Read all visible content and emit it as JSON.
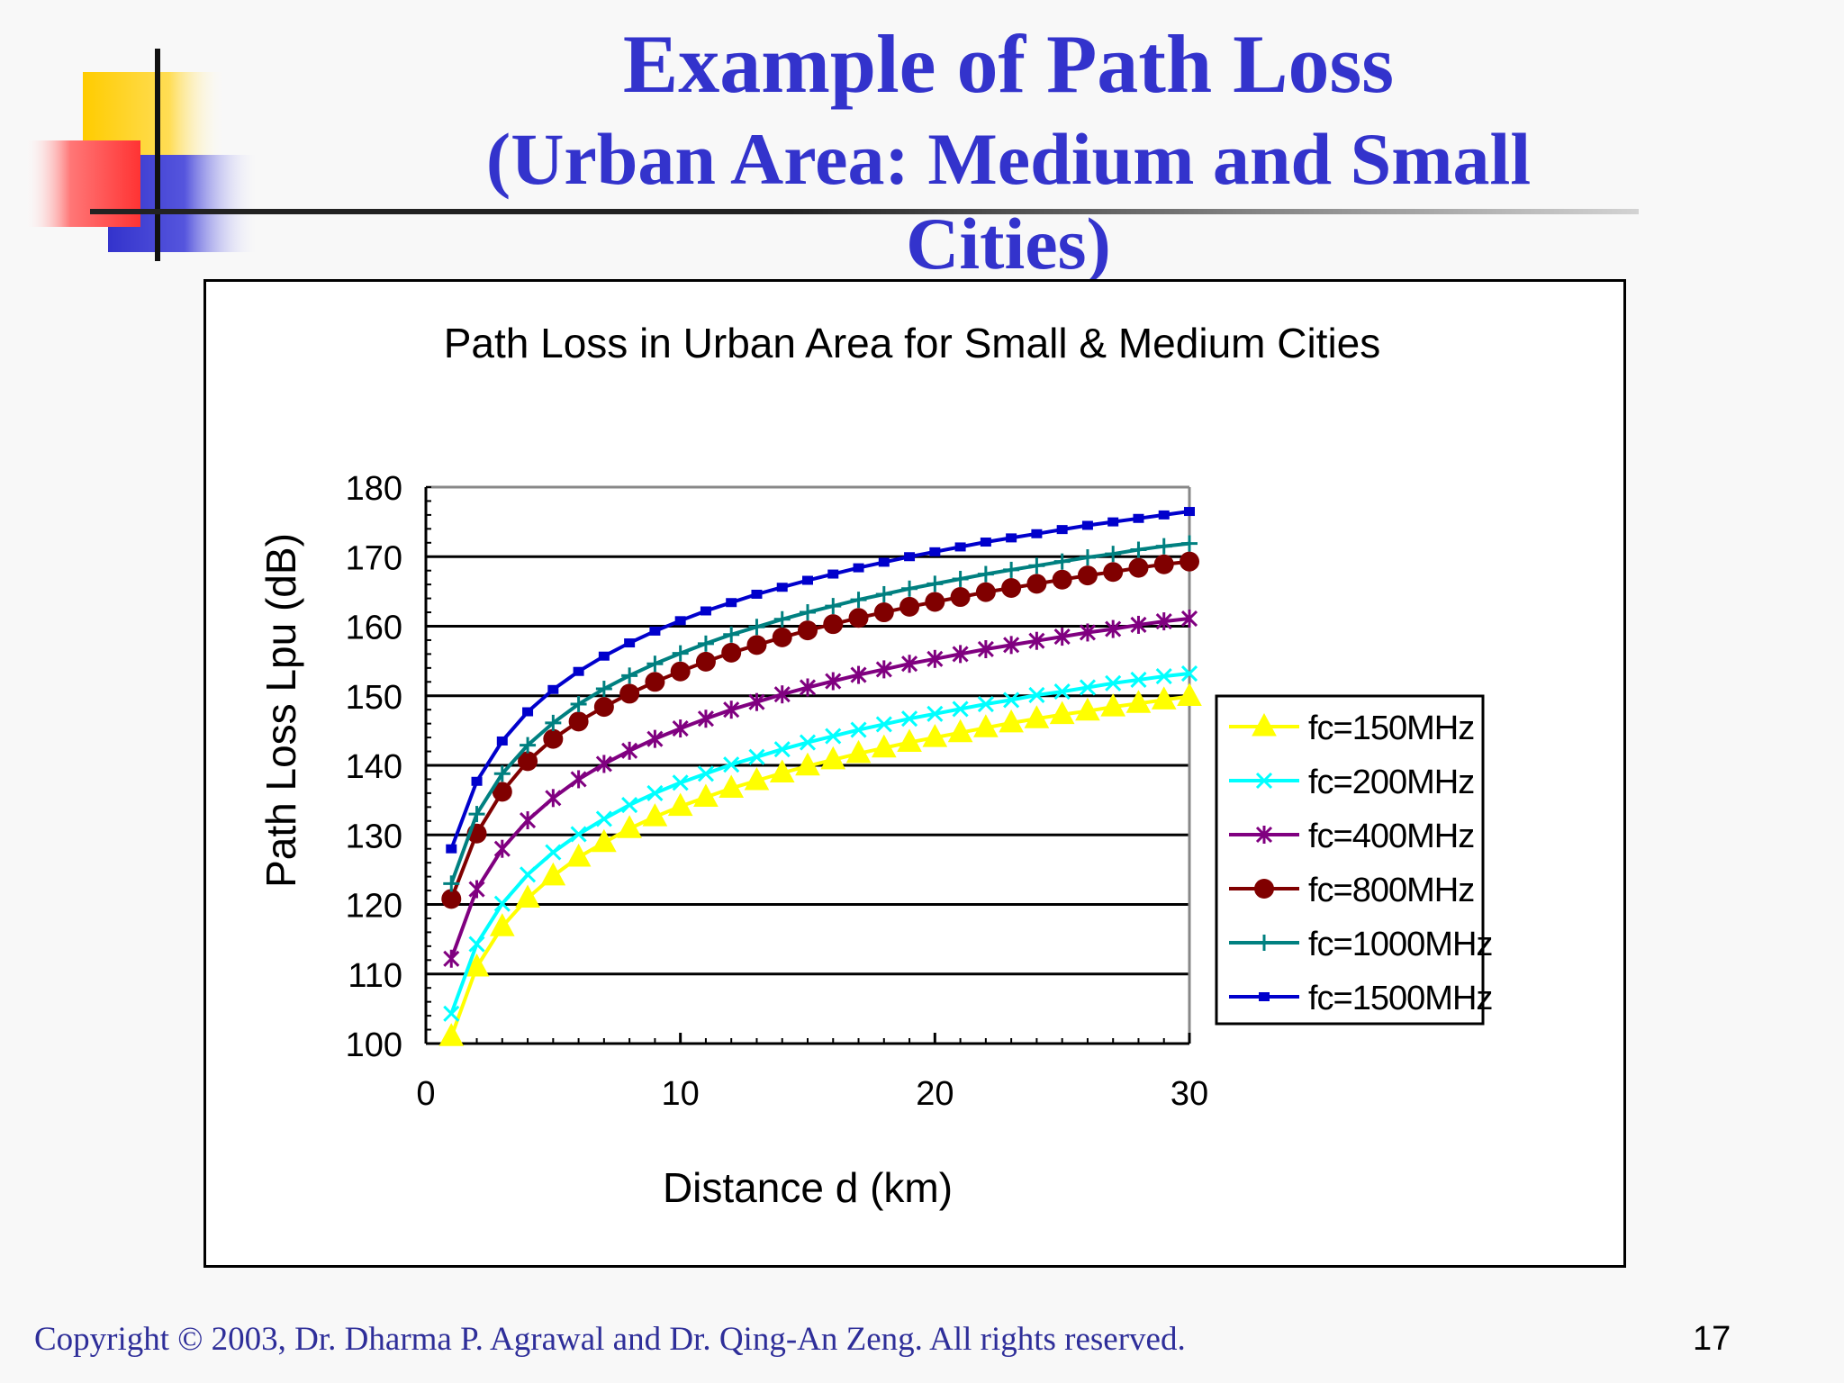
{
  "slide": {
    "title": "Example of Path Loss",
    "subtitle": "(Urban Area: Medium and Small Cities)",
    "copyright": "Copyright © 2003, Dr. Dharma P. Agrawal and Dr. Qing-An Zeng. All rights reserved.",
    "page_number": "17"
  },
  "chart_data": {
    "type": "line",
    "title": "Path Loss in Urban Area for Small & Medium Cities",
    "xlabel": "Distance d (km)",
    "ylabel": "Path Loss Lpu (dB)",
    "xlim": [
      0,
      30
    ],
    "ylim": [
      100,
      180
    ],
    "xticks": [
      0,
      10,
      20,
      30
    ],
    "yticks": [
      100,
      110,
      120,
      130,
      140,
      150,
      160,
      170,
      180
    ],
    "grid": "horizontal major gridlines",
    "legend_position": "right",
    "x": [
      1,
      2,
      3,
      4,
      5,
      6,
      7,
      8,
      9,
      10,
      11,
      12,
      13,
      14,
      15,
      16,
      17,
      18,
      19,
      20,
      21,
      22,
      23,
      24,
      25,
      26,
      27,
      28,
      29,
      30
    ],
    "series": [
      {
        "name": "fc=150MHz",
        "color": "#ffff00",
        "marker": "triangle",
        "values": [
          101.0,
          111.0,
          116.8,
          120.9,
          124.1,
          126.8,
          128.9,
          130.9,
          132.6,
          134.1,
          135.4,
          136.7,
          137.8,
          138.9,
          139.9,
          140.8,
          141.7,
          142.5,
          143.3,
          144.0,
          144.7,
          145.4,
          146.1,
          146.7,
          147.3,
          147.8,
          148.4,
          148.9,
          149.4,
          149.9
        ]
      },
      {
        "name": "fc=200MHz",
        "color": "#00ffff",
        "marker": "x",
        "values": [
          104.3,
          114.3,
          120.1,
          124.3,
          127.5,
          130.1,
          132.3,
          134.3,
          136.0,
          137.5,
          138.8,
          140.1,
          141.2,
          142.3,
          143.3,
          144.2,
          145.1,
          145.9,
          146.7,
          147.4,
          148.1,
          148.8,
          149.4,
          150.1,
          150.6,
          151.2,
          151.8,
          152.3,
          152.8,
          153.2
        ]
      },
      {
        "name": "fc=400MHz",
        "color": "#800080",
        "marker": "asterisk",
        "values": [
          112.2,
          122.2,
          128.0,
          132.1,
          135.3,
          138.0,
          140.2,
          142.1,
          143.8,
          145.3,
          146.7,
          148.0,
          149.1,
          150.2,
          151.2,
          152.1,
          153.0,
          153.8,
          154.6,
          155.3,
          156.0,
          156.7,
          157.3,
          157.9,
          158.5,
          159.1,
          159.6,
          160.2,
          160.7,
          161.1
        ]
      },
      {
        "name": "fc=800MHz",
        "color": "#800000",
        "marker": "circle",
        "values": [
          120.8,
          130.2,
          136.2,
          140.6,
          143.8,
          146.3,
          148.4,
          150.3,
          152.0,
          153.5,
          154.9,
          156.2,
          157.3,
          158.4,
          159.4,
          160.3,
          161.2,
          162.0,
          162.8,
          163.5,
          164.2,
          164.9,
          165.5,
          166.1,
          166.7,
          167.3,
          167.8,
          168.4,
          168.9,
          169.3
        ]
      },
      {
        "name": "fc=1000MHz",
        "color": "#008080",
        "marker": "plus",
        "values": [
          123.0,
          133.0,
          138.8,
          142.9,
          146.1,
          148.8,
          151.0,
          152.9,
          154.6,
          156.1,
          157.5,
          158.8,
          159.9,
          161.0,
          162.0,
          162.9,
          163.8,
          164.6,
          165.4,
          166.1,
          166.8,
          167.5,
          168.1,
          168.7,
          169.3,
          169.9,
          170.4,
          171.0,
          171.5,
          171.9
        ]
      },
      {
        "name": "fc=1500MHz",
        "color": "#0000cc",
        "marker": "square",
        "values": [
          128.0,
          137.7,
          143.5,
          147.7,
          150.9,
          153.5,
          155.7,
          157.6,
          159.3,
          160.8,
          162.2,
          163.4,
          164.6,
          165.6,
          166.6,
          167.5,
          168.4,
          169.2,
          170.0,
          170.7,
          171.4,
          172.1,
          172.7,
          173.3,
          173.9,
          174.5,
          175.0,
          175.5,
          176.0,
          176.5
        ]
      }
    ]
  }
}
